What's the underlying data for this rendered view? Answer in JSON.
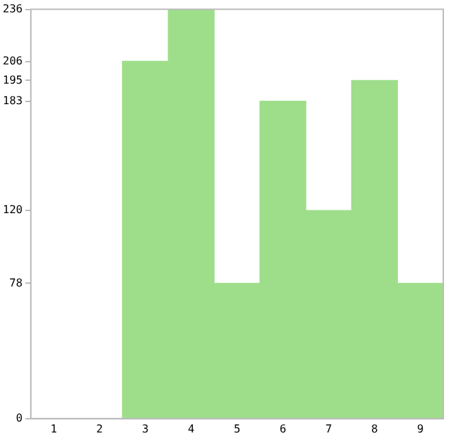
{
  "chart_data": {
    "type": "bar",
    "categories": [
      "1",
      "2",
      "3",
      "4",
      "5",
      "6",
      "7",
      "8",
      "9"
    ],
    "values": [
      0,
      0,
      206,
      236,
      78,
      183,
      120,
      195,
      78
    ],
    "color": "#9ede8a",
    "ylim": [
      0,
      236
    ],
    "yticks": [
      0,
      78,
      120,
      183,
      195,
      206,
      236
    ],
    "grid": false,
    "legend": false
  }
}
